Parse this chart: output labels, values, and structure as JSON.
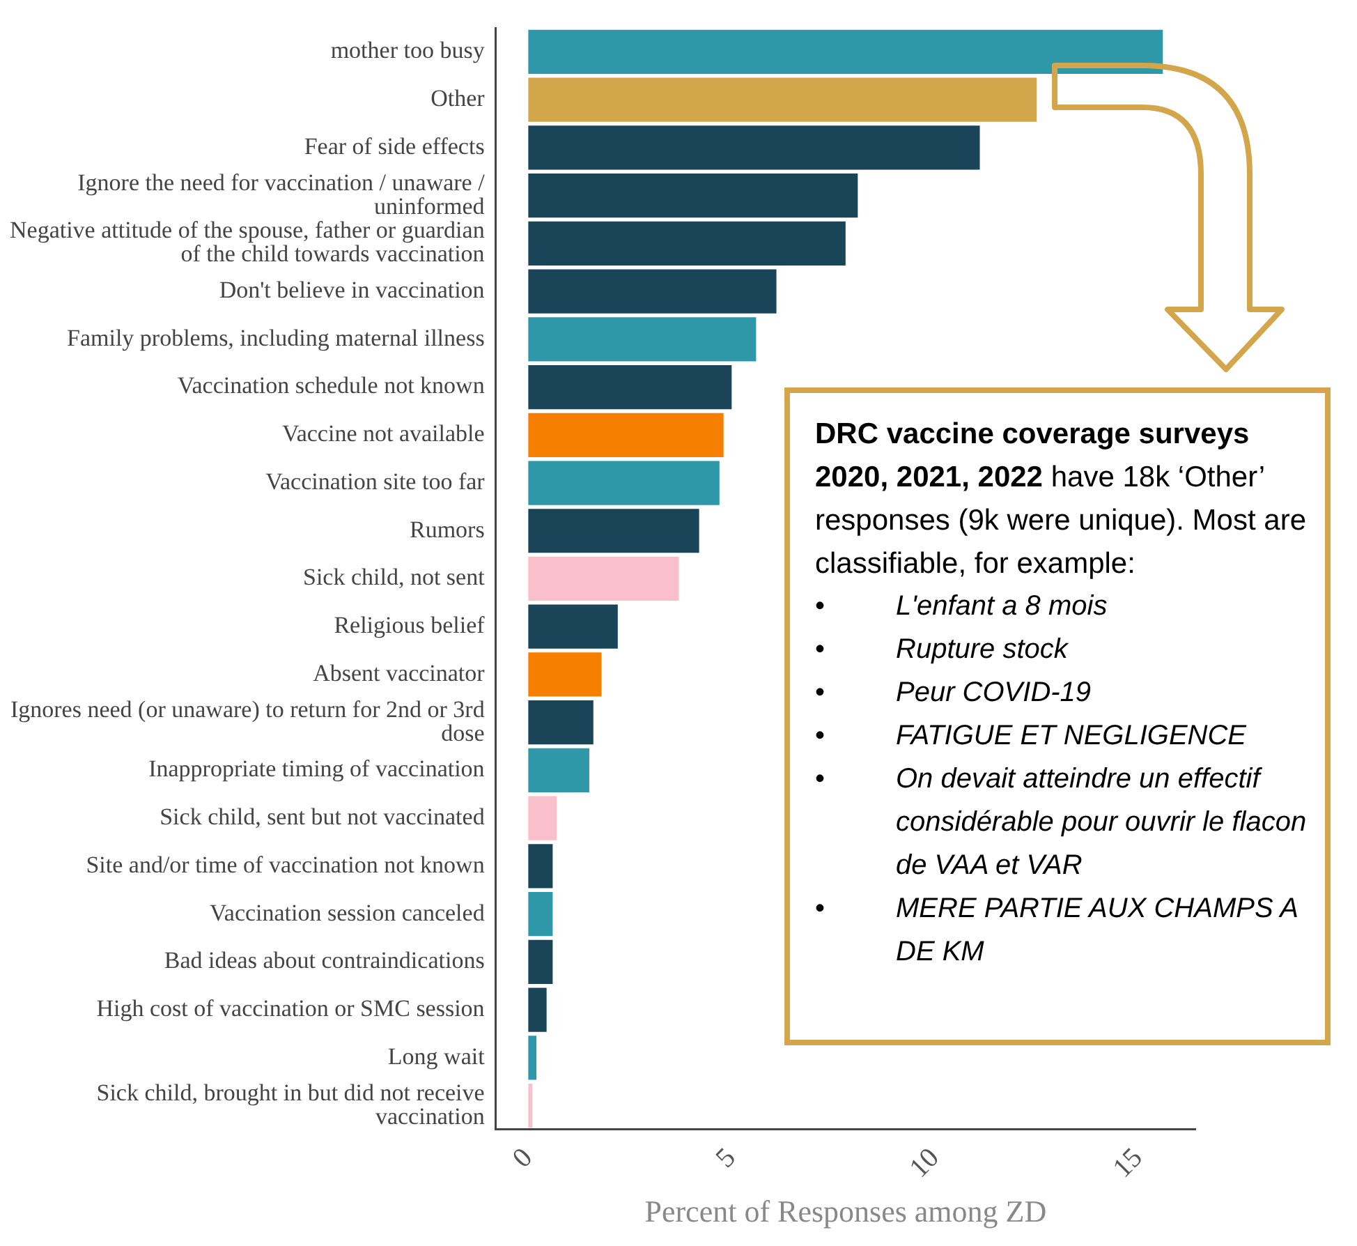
{
  "chart_data": {
    "type": "bar",
    "orientation": "horizontal",
    "categories": [
      "mother too busy",
      "Other",
      "Fear of side effects",
      "Ignore the need for vaccination / unaware / uninformed",
      "Negative attitude of the spouse, father or guardian of the child towards vaccination",
      "Don't believe in vaccination",
      "Family problems, including maternal illness",
      "Vaccination schedule not known",
      "Vaccine not available",
      "Vaccination site too far",
      "Rumors",
      "Sick child, not sent",
      "Religious belief",
      "Absent vaccinator",
      "Ignores need (or unaware) to return for 2nd or 3rd dose",
      "Inappropriate timing of vaccination",
      "Sick child, sent but not vaccinated",
      "Site and/or time of vaccination not known",
      "Vaccination session canceled",
      "Bad ideas about contraindications",
      "High cost of vaccination or SMC session",
      "Long wait",
      "Sick child, brought in but did not receive vaccination"
    ],
    "values": [
      15.6,
      12.5,
      11.1,
      8.1,
      7.8,
      6.1,
      5.6,
      5.0,
      4.8,
      4.7,
      4.2,
      3.7,
      2.2,
      1.8,
      1.6,
      1.5,
      0.7,
      0.6,
      0.6,
      0.6,
      0.45,
      0.2,
      0.1
    ],
    "colors": [
      "#2e98a8",
      "#d4a64c",
      "#1a4457",
      "#1a4457",
      "#1a4457",
      "#1a4457",
      "#2e98a8",
      "#1a4457",
      "#f77f00",
      "#2e98a8",
      "#1a4457",
      "#f9bfcb",
      "#1a4457",
      "#f77f00",
      "#1a4457",
      "#2e98a8",
      "#f9bfcb",
      "#1a4457",
      "#2e98a8",
      "#1a4457",
      "#1a4457",
      "#2e98a8",
      "#f9bfcb"
    ],
    "xlabel": "Percent of Responses among ZD",
    "xlim": [
      -0.8,
      16.4
    ],
    "xticks": [
      0,
      5,
      10,
      15
    ],
    "annotations": [
      "DRC vaccine coverage surveys 2020, 2021, 2022",
      "have 18k ‘Other’ responses (9k were unique). Most are classifiable, for example:",
      "• L'enfant a 8 mois",
      "• Rupture stock",
      "• Peur COVID-19",
      "• FATIGUE ET NEGLIGENCE",
      "• On devait atteindre un effectif considérable pour ouvrir le flacon de VAA et VAR",
      "• MERE PARTIE AUX CHAMPS A DE KM"
    ]
  }
}
